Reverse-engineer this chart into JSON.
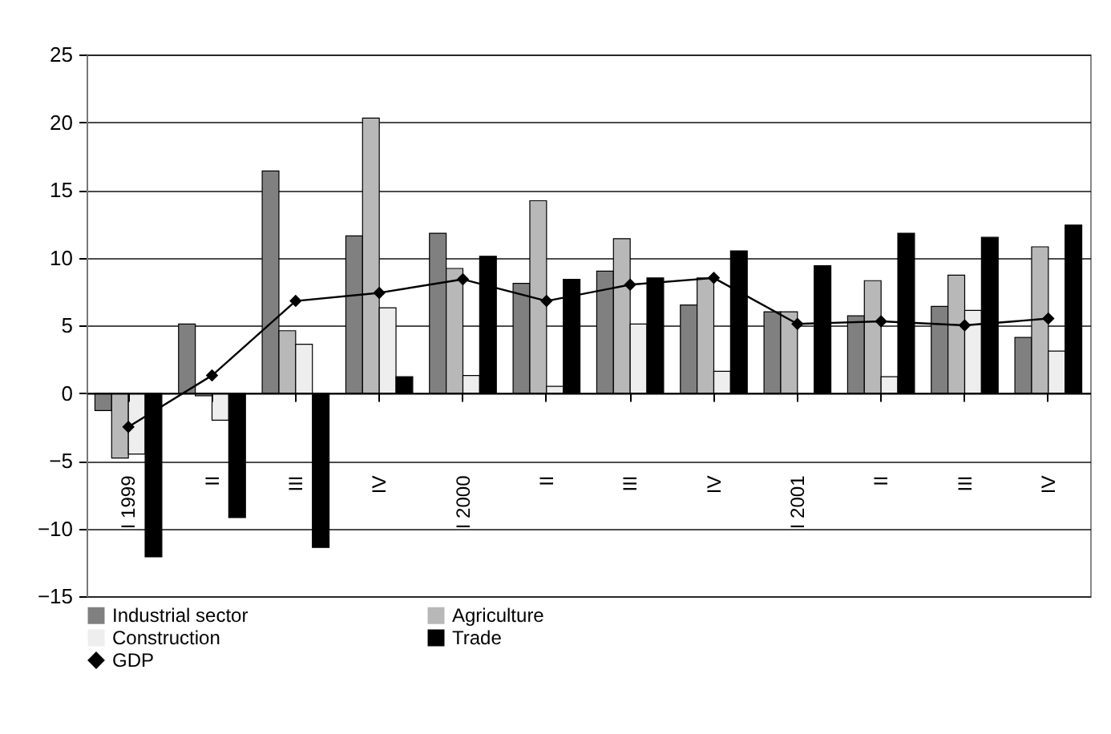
{
  "chart_data": {
    "type": "bar",
    "categories": [
      "I 1999",
      "II",
      "III",
      "IV",
      "I 2000",
      "II",
      "III",
      "IV",
      "I 2001",
      "II",
      "III",
      "IV"
    ],
    "series": [
      {
        "name": "Industrial sector",
        "color": "#808080",
        "values": [
          -1.3,
          5.1,
          16.4,
          11.6,
          11.8,
          8.1,
          9.0,
          6.5,
          6.0,
          5.7,
          6.4,
          4.1
        ]
      },
      {
        "name": "Agriculture",
        "color": "#b8b8b8",
        "values": [
          -4.8,
          -0.2,
          4.6,
          20.3,
          9.2,
          14.2,
          11.4,
          8.5,
          6.0,
          8.3,
          8.7,
          10.8
        ]
      },
      {
        "name": "Construction",
        "color": "#eeeeee",
        "values": [
          -4.5,
          -2.0,
          3.6,
          6.3,
          1.3,
          0.5,
          5.1,
          1.6,
          null,
          1.2,
          6.1,
          3.1
        ]
      },
      {
        "name": "Trade",
        "color": "#000000",
        "values": [
          -12.1,
          -9.2,
          -11.4,
          1.2,
          10.1,
          8.4,
          8.5,
          10.5,
          9.4,
          11.8,
          11.5,
          12.4
        ]
      },
      {
        "name": "GDP",
        "type": "line",
        "color": "#000000",
        "values": [
          -2.5,
          1.3,
          6.8,
          7.4,
          8.4,
          6.8,
          8.0,
          8.5,
          5.1,
          5.3,
          5.0,
          5.5
        ]
      }
    ],
    "ylim": [
      -15,
      25
    ],
    "yticks": [
      -15,
      -10,
      -5,
      0,
      5,
      10,
      15,
      20,
      25
    ],
    "grid": "y",
    "legend": "bottom",
    "marker": "diamond",
    "line_style": "solid"
  }
}
